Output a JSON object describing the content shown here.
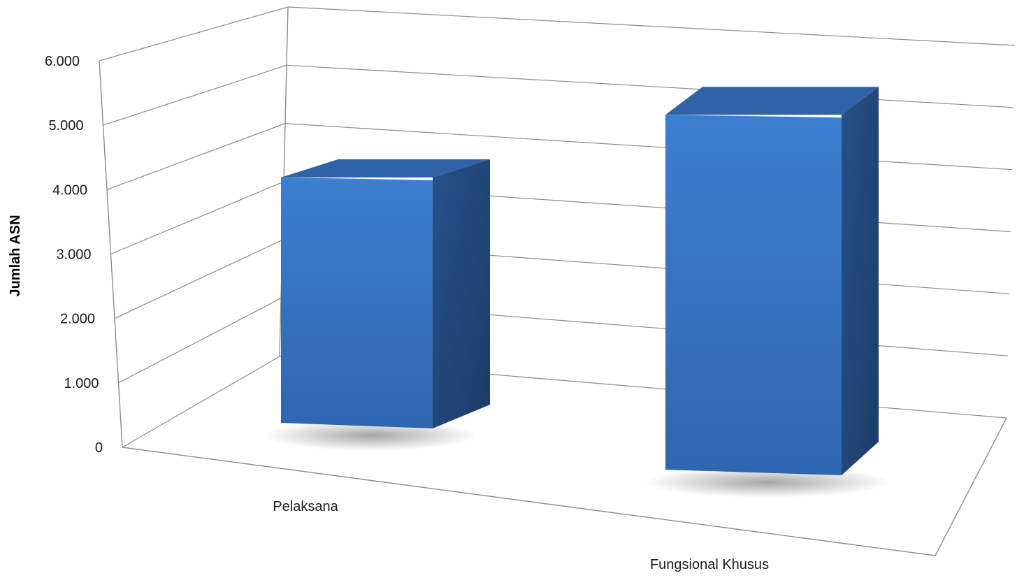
{
  "chart_data": {
    "type": "bar",
    "style": "3d-column",
    "categories": [
      "Pelaksana",
      "Fungsional Khusus"
    ],
    "values": [
      4150,
      5450
    ],
    "ylabel": "Jumlah ASN",
    "xlabel": "",
    "ylim": [
      0,
      6000
    ],
    "yticks": [
      "0",
      "1.000",
      "2.000",
      "3.000",
      "4.000",
      "5.000",
      "6.000"
    ],
    "grid": true,
    "legend": "none",
    "colors": {
      "front": "#3a78c9",
      "side": "#23497d",
      "top": "#2f63a8",
      "grid": "#8c8c8c"
    }
  }
}
